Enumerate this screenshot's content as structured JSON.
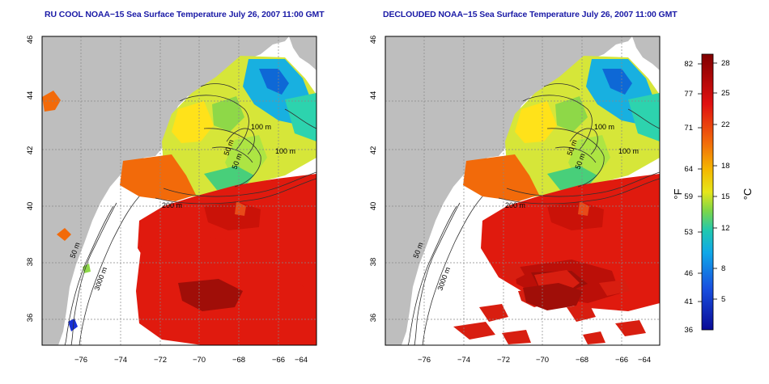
{
  "left_panel": {
    "title": "RU COOL NOAA−15 Sea Surface Temperature July 26, 2007 11:00 GMT",
    "contours": [
      "100 m",
      "50 m",
      "100 m",
      "50 m",
      "200 m",
      "50 m",
      "3000 m"
    ]
  },
  "right_panel": {
    "title": "DECLOUDED NOAA−15 Sea Surface Temperature July 26, 2007 11:00 GMT",
    "contours": [
      "100 m",
      "100 m",
      "50 m",
      "50 m",
      "200 m",
      "50 m",
      "3000 m"
    ]
  },
  "axes": {
    "x_ticks": [
      "−76",
      "−74",
      "−72",
      "−70",
      "−68",
      "−66",
      "−64"
    ],
    "y_ticks": [
      "46",
      "44",
      "42",
      "40",
      "38",
      "36"
    ]
  },
  "colorbar": {
    "fahrenheit_label": "°F",
    "celsius_label": "°C",
    "fahrenheit_ticks": [
      "82",
      "77",
      "71",
      "64",
      "59",
      "53",
      "46",
      "41",
      "36"
    ],
    "celsius_ticks": [
      "28",
      "25",
      "22",
      "18",
      "15",
      "12",
      "8",
      "5"
    ]
  },
  "colors": {
    "land": "#bebebe",
    "title": "#1a1aa6",
    "warm": "#d81e10",
    "cold": "#1030c8"
  }
}
